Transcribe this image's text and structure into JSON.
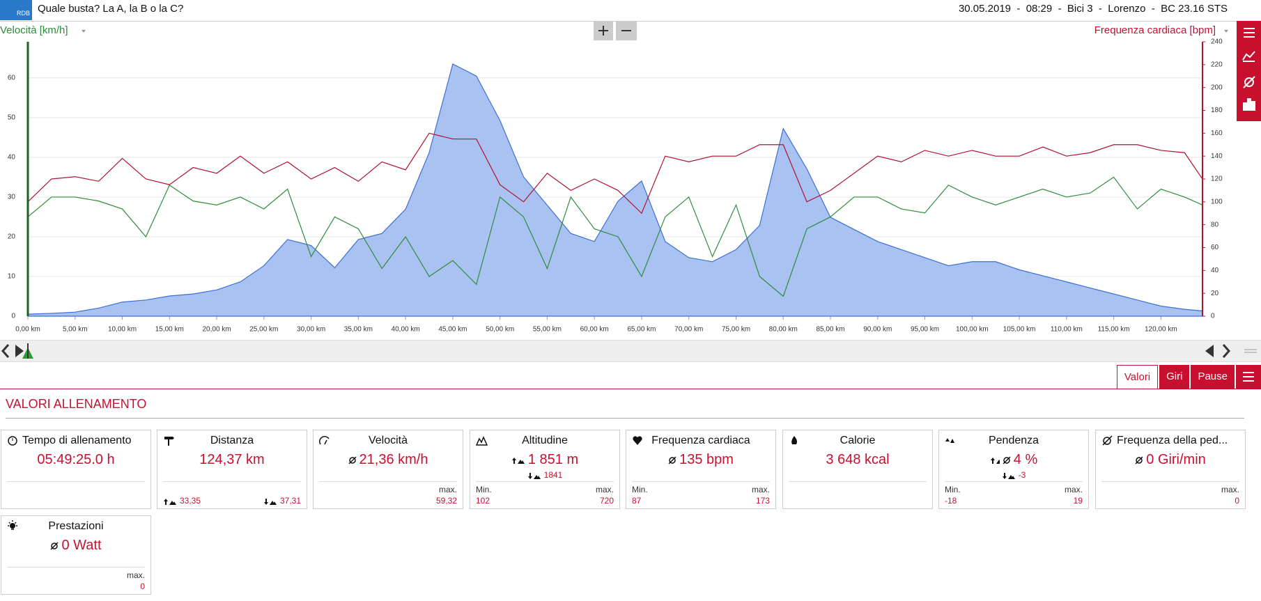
{
  "header": {
    "logo": "RDB",
    "title": "Quale busta? La A, la B o la C?",
    "info": "30.05.2019  -  08:29  -  Bici 3  -  Lorenzo  -  BC 23.16 STS"
  },
  "chart_data": {
    "type": "line",
    "y_label": "Velocità [km/h]",
    "y2_label": "Frequenza cardiaca [bpm]",
    "x": [
      0,
      2.5,
      5,
      7.5,
      10,
      12.5,
      15,
      17.5,
      20,
      22.5,
      25,
      27.5,
      30,
      32.5,
      35,
      37.5,
      40,
      42.5,
      45,
      47.5,
      50,
      52.5,
      55,
      57.5,
      60,
      62.5,
      65,
      67.5,
      70,
      72.5,
      75,
      77.5,
      80,
      82.5,
      85,
      87.5,
      90,
      92.5,
      95,
      97.5,
      100,
      102.5,
      105,
      107.5,
      110,
      112.5,
      115,
      117.5,
      120,
      122.5,
      124.4
    ],
    "series": [
      {
        "color": "#3a6fd8",
        "fill": "#a9c2f1",
        "axis": "y3",
        "area": true,
        "values": [
          100,
          102,
          105,
          115,
          130,
          135,
          145,
          150,
          160,
          180,
          220,
          285,
          270,
          215,
          285,
          300,
          360,
          500,
          720,
          690,
          580,
          440,
          370,
          300,
          280,
          380,
          430,
          280,
          240,
          230,
          260,
          320,
          560,
          460,
          340,
          310,
          280,
          260,
          240,
          220,
          230,
          230,
          210,
          195,
          180,
          165,
          150,
          135,
          120,
          112,
          108
        ]
      },
      {
        "color": "#2e8b3a",
        "axis": "y",
        "values": [
          25,
          30,
          30,
          29,
          27,
          20,
          33,
          29,
          28,
          30,
          27,
          32,
          15,
          25,
          22,
          12,
          20,
          10,
          14,
          8,
          30,
          25,
          12,
          30,
          22,
          20,
          10,
          25,
          30,
          15,
          28,
          10,
          5,
          22,
          25,
          30,
          30,
          27,
          26,
          33,
          30,
          28,
          30,
          32,
          30,
          31,
          35,
          27,
          32,
          30,
          28
        ]
      },
      {
        "color": "#b0112e",
        "axis": "y2",
        "values": [
          100,
          120,
          122,
          118,
          138,
          120,
          115,
          130,
          125,
          140,
          125,
          135,
          120,
          130,
          118,
          135,
          128,
          160,
          155,
          155,
          115,
          100,
          125,
          110,
          120,
          110,
          90,
          140,
          135,
          140,
          140,
          150,
          150,
          100,
          110,
          125,
          140,
          135,
          145,
          140,
          145,
          140,
          140,
          148,
          140,
          143,
          150,
          150,
          145,
          143,
          120
        ]
      }
    ],
    "xlim": [
      0,
      124.4
    ],
    "xticks": [
      {
        "value": 0,
        "label": "0,00 km"
      },
      {
        "value": 5,
        "label": "5,00 km"
      },
      {
        "value": 10,
        "label": "10,00 km"
      },
      {
        "value": 15,
        "label": "15,00 km"
      },
      {
        "value": 20,
        "label": "20,00 km"
      },
      {
        "value": 25,
        "label": "25,00 km"
      },
      {
        "value": 30,
        "label": "30,00 km"
      },
      {
        "value": 35,
        "label": "35,00 km"
      },
      {
        "value": 40,
        "label": "40,00 km"
      },
      {
        "value": 45,
        "label": "45,00 km"
      },
      {
        "value": 50,
        "label": "50,00 km"
      },
      {
        "value": 55,
        "label": "55,00 km"
      },
      {
        "value": 60,
        "label": "60,00 km"
      },
      {
        "value": 65,
        "label": "65,00 km"
      },
      {
        "value": 70,
        "label": "70,00 km"
      },
      {
        "value": 75,
        "label": "75,00 km"
      },
      {
        "value": 80,
        "label": "80,00 km"
      },
      {
        "value": 85,
        "label": "85,00 km"
      },
      {
        "value": 90,
        "label": "90,00 km"
      },
      {
        "value": 95,
        "label": "95,00 km"
      },
      {
        "value": 100,
        "label": "100,00 km"
      },
      {
        "value": 105,
        "label": "105,00 km"
      },
      {
        "value": 110,
        "label": "110,00 km"
      },
      {
        "value": 115,
        "label": "115,00 km"
      },
      {
        "value": 120,
        "label": "120,00 km"
      }
    ],
    "ylim": [
      0,
      69.1
    ],
    "yticks": [
      0,
      10,
      20,
      30,
      40,
      50,
      60
    ],
    "y2lim": [
      0,
      240
    ],
    "y2ticks": [
      0,
      20,
      40,
      60,
      80,
      100,
      120,
      140,
      160,
      180,
      200,
      220,
      240
    ],
    "y3lim": [
      95,
      775
    ],
    "grid": true
  },
  "tabs": [
    "Valori",
    "Giri",
    "Pause"
  ],
  "section_title": "VALORI ALLENAMENTO",
  "cards": [
    {
      "title": "Tempo di allenamento",
      "value": "05:49:25.0 h"
    },
    {
      "title": "Distanza",
      "value": "124,37 km",
      "left": "33,35",
      "right": "37,31"
    },
    {
      "title": "Velocità",
      "value": "21,36 km/h",
      "right_label": "max.",
      "right": "59,32"
    },
    {
      "title": "Altitudine",
      "value": "1 851 m",
      "sub": "1841",
      "left_label": "Min.",
      "left": "102",
      "right_label": "max.",
      "right": "720"
    },
    {
      "title": "Frequenza cardiaca",
      "value": "135 bpm",
      "left_label": "Min.",
      "left": "87",
      "right_label": "max.",
      "right": "173"
    },
    {
      "title": "Calorie",
      "value": "3 648 kcal"
    },
    {
      "title": "Pendenza",
      "value": "4 %",
      "sub": "-3",
      "left_label": "Min.",
      "left": "-18",
      "right_label": "max.",
      "right": "19"
    },
    {
      "title": "Frequenza della ped...",
      "value": "0 Giri/min",
      "right_label": "max.",
      "right": "0"
    },
    {
      "title": "Prestazioni",
      "value": "0 Watt",
      "right_label": "max.",
      "right": "0"
    }
  ]
}
